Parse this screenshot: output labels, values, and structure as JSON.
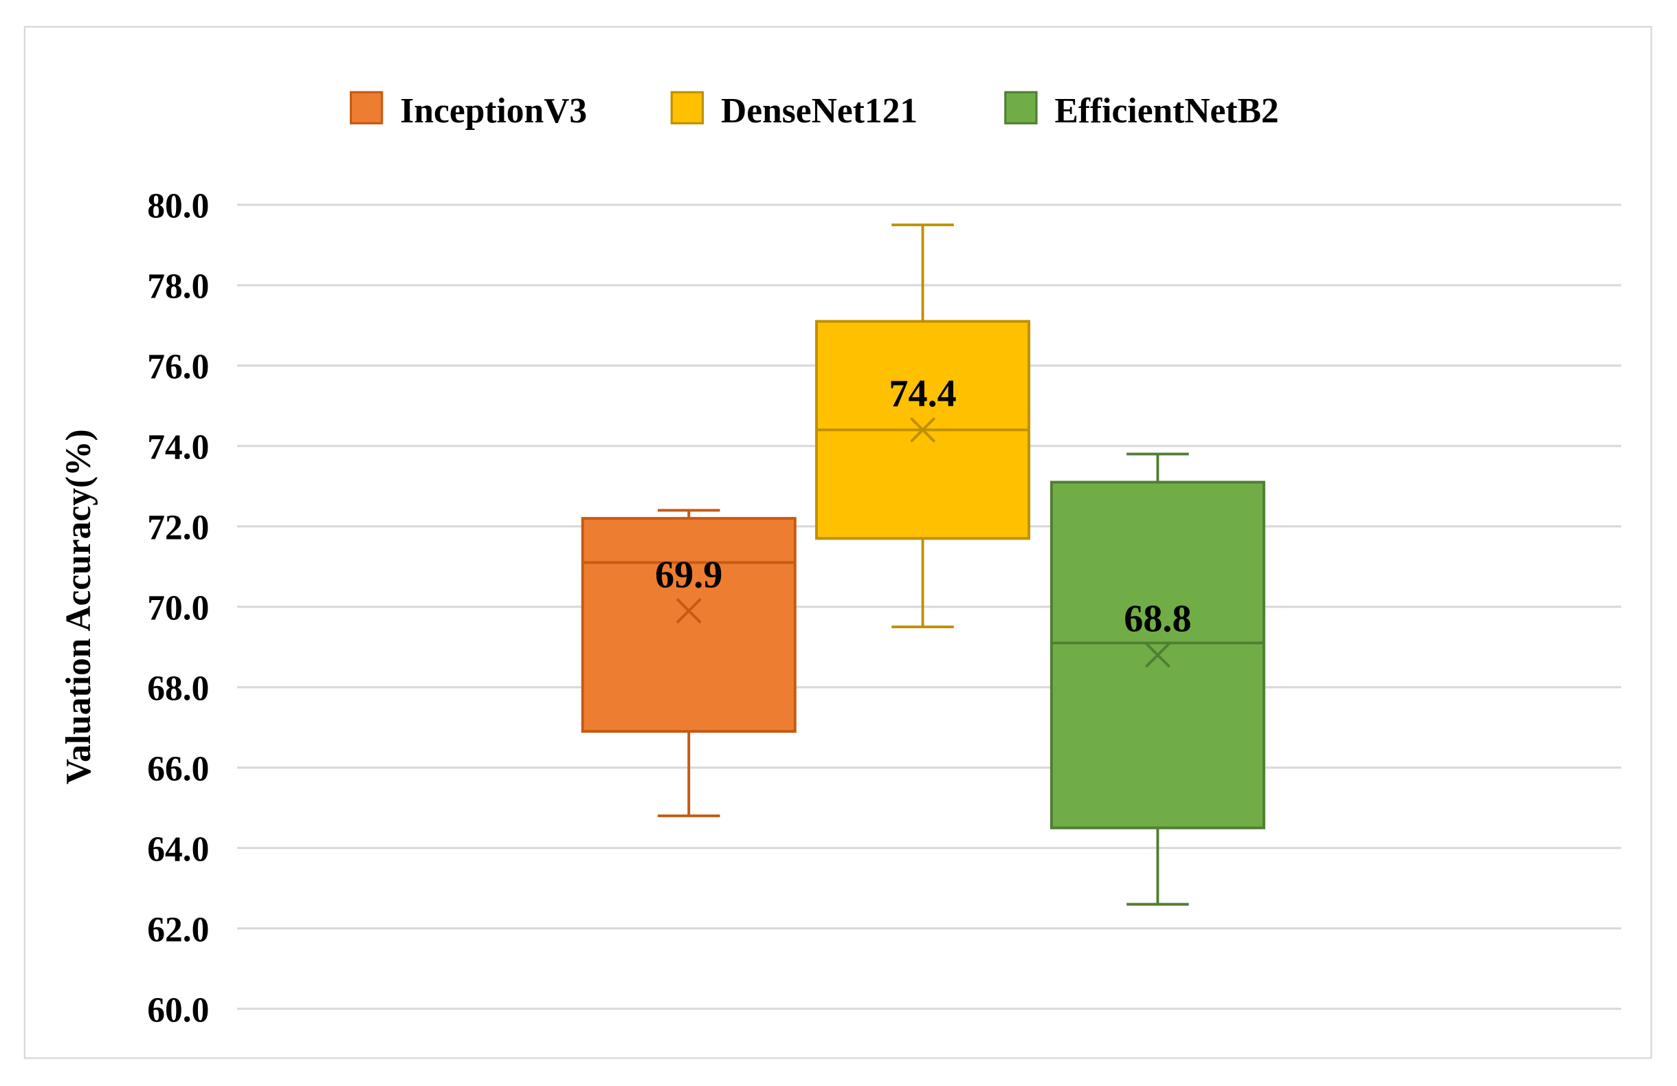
{
  "chart_data": {
    "type": "box",
    "title": "",
    "xlabel": "",
    "ylabel": "Valuation Accuracy(%)",
    "ylim": [
      60,
      80
    ],
    "yticks": [
      "60.0",
      "62.0",
      "64.0",
      "66.0",
      "68.0",
      "70.0",
      "72.0",
      "74.0",
      "76.0",
      "78.0",
      "80.0"
    ],
    "grid": true,
    "legend_position": "top",
    "series": [
      {
        "name": "InceptionV3",
        "color": "#ED7D31",
        "edge_color": "#C55A11",
        "min": 64.8,
        "q1": 66.9,
        "median": 71.1,
        "q3": 72.2,
        "max": 72.4,
        "mean": 69.9,
        "mean_label": "69.9"
      },
      {
        "name": "DenseNet121",
        "color": "#FFC000",
        "edge_color": "#BF9000",
        "min": 69.5,
        "q1": 71.7,
        "median": 74.4,
        "q3": 77.1,
        "max": 79.5,
        "mean": 74.4,
        "mean_label": "74.4"
      },
      {
        "name": "EfficientNetB2",
        "color": "#70AD47",
        "edge_color": "#507E32",
        "min": 62.6,
        "q1": 64.5,
        "median": 69.1,
        "q3": 73.1,
        "max": 73.8,
        "mean": 68.8,
        "mean_label": "68.8"
      }
    ]
  }
}
